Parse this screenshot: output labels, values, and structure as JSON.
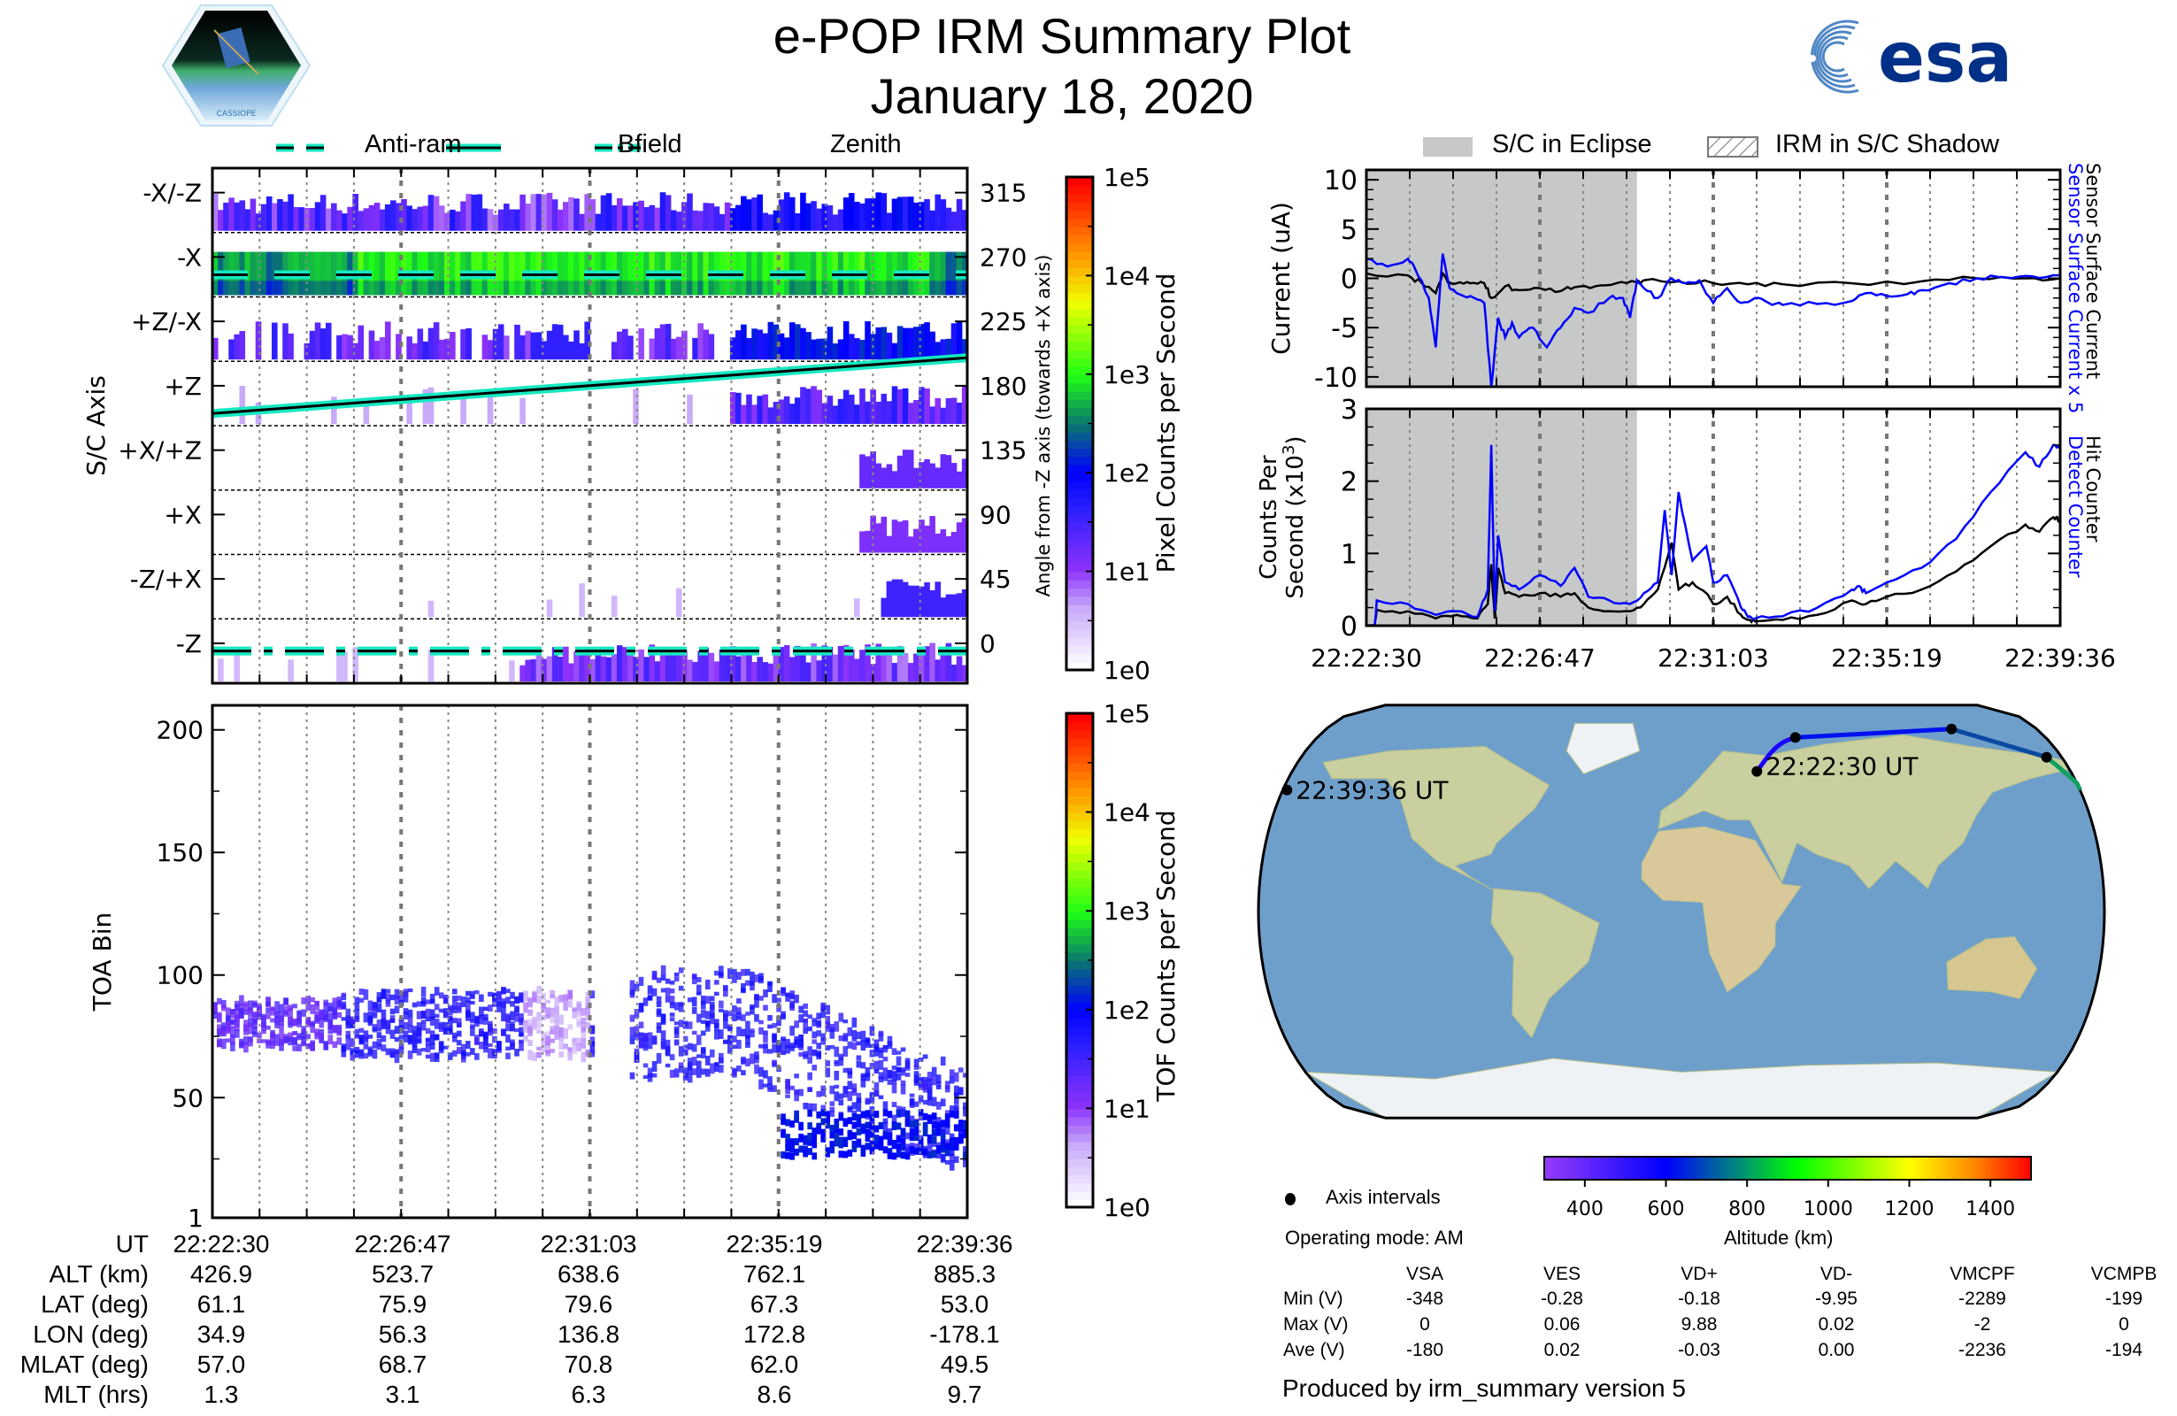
{
  "header": {
    "title": "e-POP IRM Summary Plot",
    "date": "January 18, 2020",
    "left_logo": "cassiope-mission-logo",
    "left_logo_text": "CASSIOPE",
    "right_logo": "esa-logo",
    "right_logo_text": "esa"
  },
  "legend_left": [
    {
      "label": "Anti-ram",
      "style": "dashed"
    },
    {
      "label": "Bfield",
      "style": "solid"
    },
    {
      "label": "Zenith",
      "style": "dashdot"
    }
  ],
  "legend_right": [
    {
      "label": "S/C in Eclipse",
      "style": "gray-fill"
    },
    {
      "label": "IRM in S/C Shadow",
      "style": "hatched"
    }
  ],
  "colors": {
    "legend_line_outer": "#17e8c1",
    "eclipse_fill": "#c6c9c8",
    "detect_blue": "#0000ff",
    "text": "#000000"
  },
  "time_ticks": [
    "22:22:30",
    "22:26:47",
    "22:31:03",
    "22:35:19",
    "22:39:36"
  ],
  "ephemeris": {
    "row_labels": [
      "UT",
      "ALT (km)",
      "LAT (deg)",
      "LON (deg)",
      "MLAT (deg)",
      "MLT (hrs)"
    ],
    "columns": [
      [
        "22:22:30",
        "426.9",
        "61.1",
        "34.9",
        "57.0",
        "1.3"
      ],
      [
        "22:26:47",
        "523.7",
        "75.9",
        "56.3",
        "68.7",
        "3.1"
      ],
      [
        "22:31:03",
        "638.6",
        "79.6",
        "136.8",
        "70.8",
        "6.3"
      ],
      [
        "22:35:19",
        "762.1",
        "67.3",
        "172.8",
        "62.0",
        "8.6"
      ],
      [
        "22:39:36",
        "885.3",
        "53.0",
        "-178.1",
        "49.5",
        "9.7"
      ]
    ]
  },
  "chart_data": [
    {
      "id": "sc-axis-spectrogram",
      "type": "heatmap",
      "title": "",
      "xlabel": "UT",
      "ylabel": "S/C Axis",
      "ylabel_right": "Angle from -Z axis (towards +X axis)",
      "y_categories": [
        "-X/-Z",
        "-X",
        "+Z/-X",
        "+Z",
        "+X/+Z",
        "+X",
        "-Z/+X",
        "-Z"
      ],
      "y_right_ticks": [
        315,
        270,
        225,
        180,
        135,
        90,
        45,
        0
      ],
      "x_ticks": [
        "22:22:30",
        "22:26:47",
        "22:31:03",
        "22:35:19",
        "22:39:36"
      ],
      "colorbar": {
        "label": "Pixel Counts per Second",
        "scale": "log",
        "ticks": [
          "1e0",
          "1e1",
          "1e2",
          "1e3",
          "1e4",
          "1e5"
        ],
        "range": [
          1,
          100000
        ]
      },
      "overlay_lines": [
        {
          "name": "Anti-ram",
          "style": "dashed",
          "angle_start": 263,
          "angle_end": 263
        },
        {
          "name": "Bfield",
          "style": "solid",
          "angle_start": 166,
          "angle_end": 205
        },
        {
          "name": "Zenith",
          "style": "dashdot",
          "angle_start": 0,
          "angle_end": 0
        }
      ]
    },
    {
      "id": "tof-spectrogram",
      "type": "heatmap",
      "xlabel": "UT",
      "ylabel": "TOA Bin",
      "y_ticks": [
        1,
        50,
        100,
        150,
        200
      ],
      "ylim": [
        1,
        210
      ],
      "x_ticks": [
        "22:22:30",
        "22:26:47",
        "22:31:03",
        "22:35:19",
        "22:39:36"
      ],
      "colorbar": {
        "label": "TOF Counts per Second",
        "scale": "log",
        "ticks": [
          "1e0",
          "1e1",
          "1e2",
          "1e3",
          "1e4",
          "1e5"
        ],
        "range": [
          1,
          100000
        ]
      }
    },
    {
      "id": "current-plot",
      "type": "line",
      "ylabel": "Current (uA)",
      "ylim": [
        -11,
        11
      ],
      "y_ticks": [
        -10,
        -5,
        0,
        5,
        10
      ],
      "x_ticks": [
        "22:22:30",
        "22:26:47",
        "22:31:03",
        "22:35:19",
        "22:39:36"
      ],
      "eclipse_until_fraction": 0.39,
      "series": [
        {
          "name": "Sensor Surface Current x 5",
          "color": "#0000ff",
          "x_fraction": [
            0,
            0.03,
            0.06,
            0.07,
            0.09,
            0.1,
            0.11,
            0.12,
            0.13,
            0.15,
            0.17,
            0.18,
            0.19,
            0.2,
            0.21,
            0.22,
            0.24,
            0.26,
            0.28,
            0.3,
            0.32,
            0.35,
            0.37,
            0.38,
            0.39,
            0.4,
            0.42,
            0.44,
            0.46,
            0.48,
            0.5,
            0.52,
            0.54,
            0.56,
            0.58,
            0.6,
            0.65,
            0.7,
            0.72,
            0.75,
            0.78,
            0.8,
            0.84,
            0.88,
            0.92,
            0.96,
            1.0
          ],
          "values": [
            2.0,
            1.2,
            2.0,
            1.0,
            -2.0,
            -7.0,
            2.5,
            -1.0,
            -1.5,
            -1.8,
            -2.5,
            -11,
            -4,
            -6,
            -4.5,
            -6,
            -5,
            -7,
            -5,
            -3,
            -3.5,
            -2,
            -2,
            -4,
            -0.2,
            -1,
            -2,
            0,
            -0.5,
            -0.2,
            -2.5,
            -1,
            -2.5,
            -2,
            -2.5,
            -2.7,
            -2.6,
            -2.3,
            -1.5,
            -1.8,
            -1.6,
            -1.2,
            -0.5,
            0,
            0.1,
            0.2,
            0.3
          ]
        },
        {
          "name": "Sensor Surface Current",
          "color": "#000000",
          "x_fraction": [
            0,
            0.06,
            0.08,
            0.1,
            0.11,
            0.12,
            0.13,
            0.15,
            0.17,
            0.18,
            0.2,
            0.22,
            0.25,
            0.28,
            0.3,
            0.33,
            0.36,
            0.39,
            0.4,
            0.45,
            0.5,
            0.55,
            0.6,
            0.7,
            0.8,
            0.88,
            0.95,
            1.0
          ],
          "values": [
            0.5,
            0.3,
            -0.5,
            -1.5,
            0.5,
            -0.4,
            -0.5,
            -0.5,
            -0.5,
            -2,
            -0.8,
            -1.2,
            -1,
            -1.3,
            -0.9,
            -0.8,
            -0.5,
            -0.4,
            -0.2,
            -0.3,
            -0.5,
            -0.6,
            -0.6,
            -0.5,
            -0.3,
            0,
            0,
            0
          ]
        }
      ],
      "right_labels": [
        "Sensor Surface Current x 5",
        "Sensor Surface Current"
      ]
    },
    {
      "id": "counts-plot",
      "type": "line",
      "ylabel": "Counts Per Second (x10^3)",
      "ylim": [
        0,
        3
      ],
      "y_ticks": [
        0,
        1,
        2,
        3
      ],
      "x_ticks": [
        "22:22:30",
        "22:26:47",
        "22:31:03",
        "22:35:19",
        "22:39:36"
      ],
      "eclipse_until_fraction": 0.39,
      "series": [
        {
          "name": "Detect Counter",
          "color": "#0000ff",
          "x_fraction": [
            0,
            0.012,
            0.015,
            0.06,
            0.1,
            0.13,
            0.16,
            0.175,
            0.18,
            0.185,
            0.19,
            0.2,
            0.22,
            0.25,
            0.28,
            0.3,
            0.32,
            0.35,
            0.38,
            0.4,
            0.42,
            0.43,
            0.44,
            0.45,
            0.47,
            0.49,
            0.5,
            0.52,
            0.54,
            0.55,
            0.56,
            0.6,
            0.65,
            0.7,
            0.71,
            0.72,
            0.75,
            0.8,
            0.85,
            0.9,
            0.95,
            0.97,
            0.99,
            1.0
          ],
          "values": [
            0,
            0,
            0.35,
            0.3,
            0.15,
            0.2,
            0.12,
            0.5,
            2.5,
            0.2,
            1.25,
            0.6,
            0.5,
            0.7,
            0.55,
            0.8,
            0.4,
            0.35,
            0.3,
            0.45,
            0.6,
            1.6,
            0.7,
            1.85,
            0.9,
            1.1,
            0.6,
            0.7,
            0.25,
            0.12,
            0.1,
            0.13,
            0.25,
            0.5,
            0.55,
            0.45,
            0.6,
            0.8,
            1.2,
            1.85,
            2.4,
            2.2,
            2.5,
            2.45
          ]
        },
        {
          "name": "Hit Counter",
          "color": "#000000",
          "x_fraction": [
            0,
            0.012,
            0.015,
            0.06,
            0.1,
            0.13,
            0.16,
            0.175,
            0.18,
            0.185,
            0.19,
            0.2,
            0.22,
            0.25,
            0.28,
            0.3,
            0.32,
            0.35,
            0.38,
            0.4,
            0.42,
            0.44,
            0.45,
            0.47,
            0.49,
            0.5,
            0.52,
            0.54,
            0.55,
            0.56,
            0.6,
            0.65,
            0.7,
            0.72,
            0.75,
            0.8,
            0.85,
            0.9,
            0.95,
            0.97,
            0.99,
            1.0
          ],
          "values": [
            0,
            0,
            0.22,
            0.2,
            0.1,
            0.15,
            0.1,
            0.3,
            0.85,
            0.1,
            0.8,
            0.45,
            0.4,
            0.45,
            0.4,
            0.45,
            0.25,
            0.2,
            0.2,
            0.3,
            0.5,
            1.15,
            0.5,
            0.6,
            0.45,
            0.3,
            0.4,
            0.15,
            0.08,
            0.06,
            0.08,
            0.15,
            0.35,
            0.3,
            0.4,
            0.5,
            0.75,
            1.1,
            1.4,
            1.3,
            1.5,
            1.45
          ]
        }
      ],
      "right_labels": [
        "Detect Counter",
        "Hit Counter"
      ]
    },
    {
      "id": "orbit-map",
      "type": "scatter",
      "title": "",
      "annotations": [
        "22:22:30 UT",
        "22:39:36 UT"
      ],
      "legend": "Axis intervals",
      "track_points": [
        {
          "time": "22:22:30",
          "lat": 61.1,
          "lon": 34.9
        },
        {
          "time": "22:26:47",
          "lat": 75.9,
          "lon": 56.3
        },
        {
          "time": "22:31:03",
          "lat": 79.6,
          "lon": 136.8
        },
        {
          "time": "22:35:19",
          "lat": 67.3,
          "lon": 172.8
        },
        {
          "time": "22:39:36",
          "lat": 53.0,
          "lon": -178.1
        }
      ],
      "colorbar": {
        "label": "Altitude (km)",
        "ticks": [
          400,
          600,
          800,
          1000,
          1200,
          1400
        ],
        "range": [
          300,
          1500
        ]
      }
    }
  ],
  "map_panel": {
    "axis_intervals_label": "Axis intervals",
    "operating_mode": "Operating mode: AM",
    "altitude_label": "Altitude (km)",
    "altitude_ticks": [
      "400",
      "600",
      "800",
      "1000",
      "1200",
      "1400"
    ]
  },
  "voltage_table": {
    "headers": [
      "VSA",
      "VES",
      "VD+",
      "VD-",
      "VMCPF",
      "VCMPB"
    ],
    "rows": [
      {
        "label": "Min (V)",
        "values": [
          "-348",
          "-0.28",
          "-0.18",
          "-9.95",
          "-2289",
          "-199"
        ]
      },
      {
        "label": "Max (V)",
        "values": [
          "0",
          "0.06",
          "9.88",
          "0.02",
          "-2",
          "0"
        ]
      },
      {
        "label": "Ave (V)",
        "values": [
          "-180",
          "0.02",
          "-0.03",
          "0.00",
          "-2236",
          "-194"
        ]
      }
    ]
  },
  "footer": {
    "produced_by": "Produced by irm_summary version 5"
  }
}
